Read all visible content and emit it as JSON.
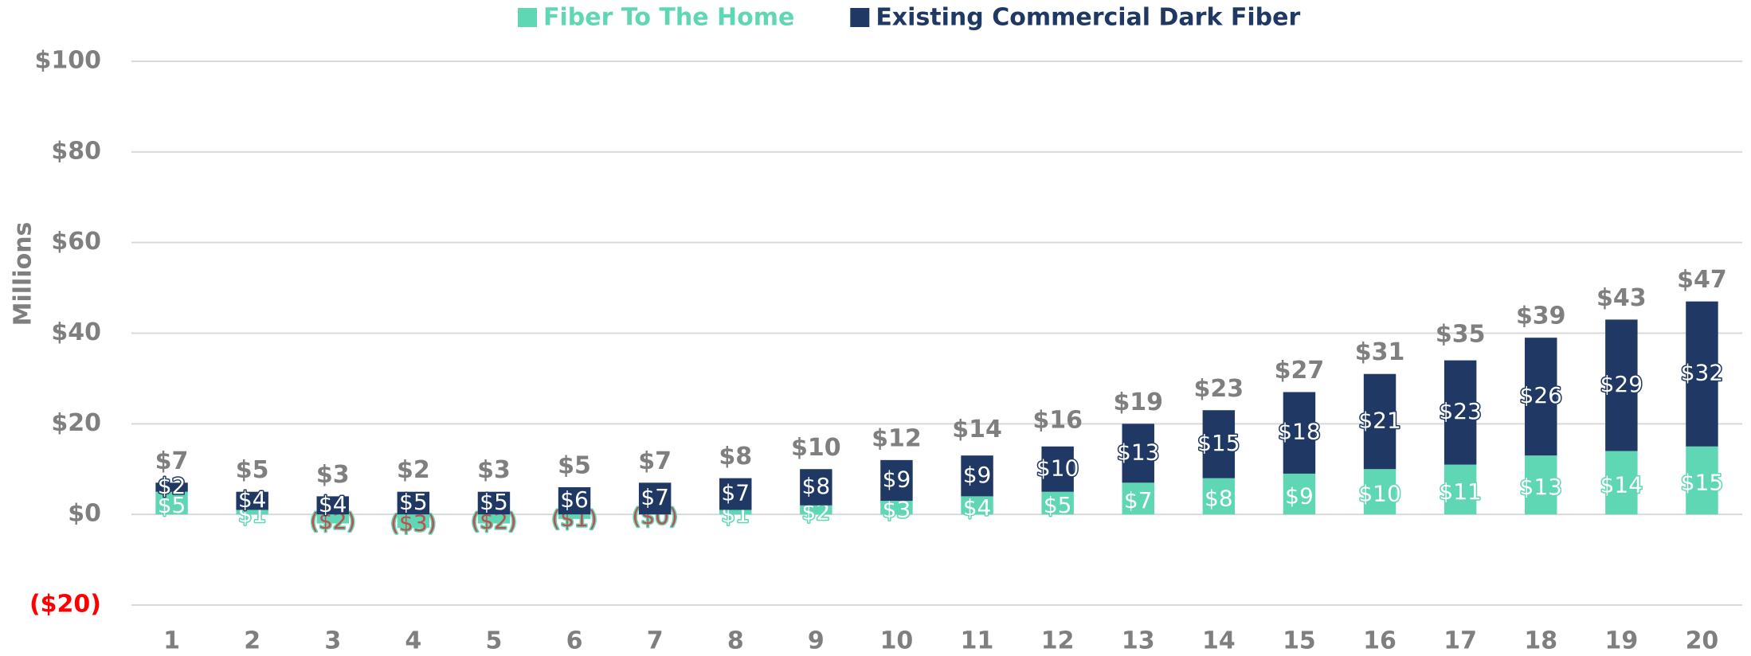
{
  "chart_data": {
    "type": "stacked_bar",
    "y_label": "Millions",
    "categories": [
      "1",
      "2",
      "3",
      "4",
      "5",
      "6",
      "7",
      "8",
      "9",
      "10",
      "11",
      "12",
      "13",
      "14",
      "15",
      "16",
      "17",
      "18",
      "19",
      "20"
    ],
    "series": [
      {
        "name": "Fiber To The Home",
        "color": "#5fd6b4",
        "values": [
          5,
          1,
          -2,
          -3,
          -2,
          -1,
          0,
          1,
          2,
          3,
          4,
          5,
          7,
          8,
          9,
          10,
          11,
          13,
          14,
          15
        ],
        "value_labels": [
          "$5",
          "$1",
          "($2)",
          "($3)",
          "($2)",
          "($1)",
          "($0)",
          "$1",
          "$2",
          "$3",
          "$4",
          "$5",
          "$7",
          "$8",
          "$9",
          "$10",
          "$11",
          "$13",
          "$14",
          "$15"
        ]
      },
      {
        "name": "Existing Commercial Dark Fiber",
        "color": "#1f3864",
        "values": [
          2,
          4,
          4,
          5,
          5,
          6,
          7,
          7,
          8,
          9,
          9,
          10,
          13,
          15,
          18,
          21,
          23,
          26,
          29,
          32
        ],
        "value_labels": [
          "$2",
          "$4",
          "$4",
          "$5",
          "$5",
          "$6",
          "$7",
          "$7",
          "$8",
          "$9",
          "$9",
          "$10",
          "$13",
          "$15",
          "$18",
          "$21",
          "$23",
          "$26",
          "$29",
          "$32"
        ]
      }
    ],
    "totals": [
      7,
      5,
      3,
      2,
      3,
      5,
      7,
      8,
      10,
      12,
      14,
      16,
      19,
      23,
      27,
      31,
      35,
      39,
      43,
      47
    ],
    "total_labels": [
      "$7",
      "$5",
      "$3",
      "$2",
      "$3",
      "$5",
      "$7",
      "$8",
      "$10",
      "$12",
      "$14",
      "$16",
      "$19",
      "$23",
      "$27",
      "$31",
      "$35",
      "$39",
      "$43",
      "$47"
    ],
    "ylim": [
      -20,
      100
    ],
    "yticks": [
      {
        "value": -20,
        "label": "($20)"
      },
      {
        "value": 0,
        "label": "$0"
      },
      {
        "value": 20,
        "label": "$20"
      },
      {
        "value": 40,
        "label": "$40"
      },
      {
        "value": 60,
        "label": "$60"
      },
      {
        "value": 80,
        "label": "$80"
      },
      {
        "value": 100,
        "label": "$100"
      }
    ],
    "grid": true,
    "legend": "top"
  }
}
